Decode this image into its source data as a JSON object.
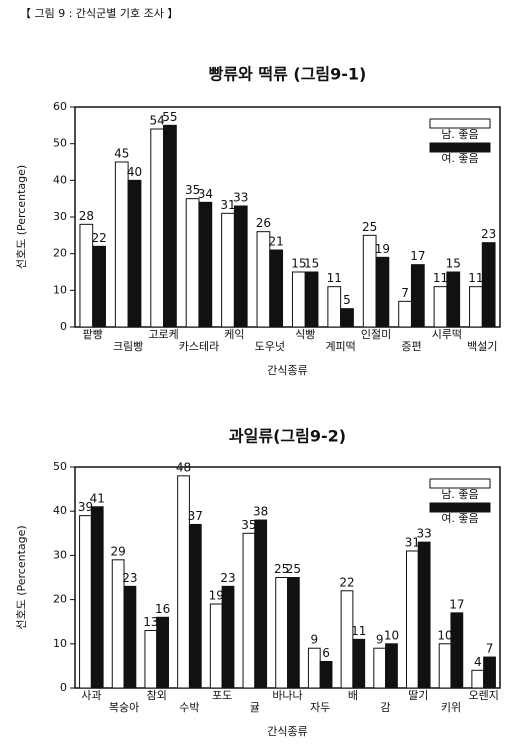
{
  "header": "【 그림 9 : 간식군별 기호 조사 】",
  "chart_data": [
    {
      "type": "bar",
      "title": "빵류와 떡류 (그림9-1)",
      "y_label": "선호도 (Percentage)",
      "x_label": "간식종류",
      "categories": [
        "팥빵",
        "크림빵",
        "고로케",
        "카스테라",
        "케익",
        "도우넛",
        "식빵",
        "계피떡",
        "인절미",
        "증편",
        "시루떡",
        "백설기"
      ],
      "series": [
        {
          "name": "남. 좋음",
          "color": "#ffffff",
          "values": [
            28,
            45,
            54,
            35,
            31,
            26,
            15,
            11,
            25,
            7,
            11,
            11
          ]
        },
        {
          "name": "여. 좋음",
          "color": "#111111",
          "values": [
            22,
            40,
            55,
            34,
            33,
            21,
            15,
            5,
            19,
            17,
            15,
            23
          ]
        }
      ],
      "ylim": [
        0,
        60
      ],
      "yticks": [
        0,
        10,
        20,
        30,
        40,
        50,
        60
      ],
      "legend": "upper right"
    },
    {
      "type": "bar",
      "title": "과일류(그림9-2)",
      "y_label": "선호도 (Percentage)",
      "x_label": "간식종류",
      "categories": [
        "사과",
        "복숭아",
        "참외",
        "수박",
        "포도",
        "귤",
        "바나나",
        "자두",
        "배",
        "감",
        "딸기",
        "키위",
        "오렌지"
      ],
      "series": [
        {
          "name": "남. 좋음",
          "color": "#ffffff",
          "values": [
            39,
            29,
            13,
            48,
            19,
            35,
            25,
            9,
            22,
            9,
            31,
            10,
            4
          ]
        },
        {
          "name": "여. 좋음",
          "color": "#111111",
          "values": [
            41,
            23,
            16,
            37,
            23,
            38,
            25,
            6,
            11,
            10,
            33,
            17,
            7
          ]
        }
      ],
      "ylim": [
        0,
        50
      ],
      "yticks": [
        0,
        10,
        20,
        30,
        40,
        50
      ],
      "legend": "upper right"
    }
  ]
}
